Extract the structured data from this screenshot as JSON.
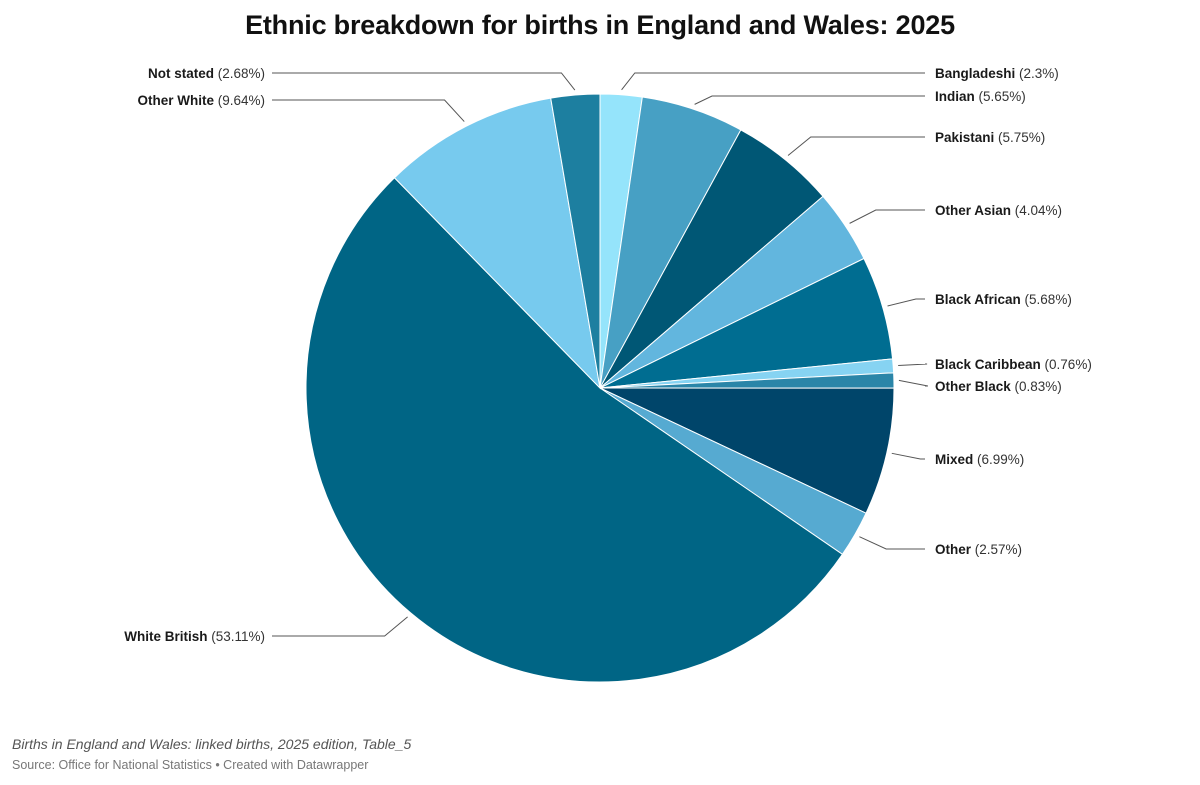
{
  "title": "Ethnic breakdown for births in England and Wales: 2025",
  "footer": {
    "note": "Births in England and Wales: linked births, 2025 edition, Table_5",
    "source": "Source: Office for National Statistics • Created with Datawrapper"
  },
  "chart_data": {
    "type": "pie",
    "title": "Ethnic breakdown for births in England and Wales: 2025",
    "unit": "%",
    "slices": [
      {
        "label": "Bangladeshi",
        "value": 2.3,
        "display": "(2.3%)",
        "color": "#95e4fb"
      },
      {
        "label": "Indian",
        "value": 5.65,
        "display": "(5.65%)",
        "color": "#47a0c4"
      },
      {
        "label": "Pakistani",
        "value": 5.75,
        "display": "(5.75%)",
        "color": "#005775"
      },
      {
        "label": "Other Asian",
        "value": 4.04,
        "display": "(4.04%)",
        "color": "#62b6de"
      },
      {
        "label": "Black African",
        "value": 5.68,
        "display": "(5.68%)",
        "color": "#006d91"
      },
      {
        "label": "Black Caribbean",
        "value": 0.76,
        "display": "(0.76%)",
        "color": "#86d3f2"
      },
      {
        "label": "Other Black",
        "value": 0.83,
        "display": "(0.83%)",
        "color": "#2a85a8"
      },
      {
        "label": "Mixed",
        "value": 6.99,
        "display": "(6.99%)",
        "color": "#00456a"
      },
      {
        "label": "Other",
        "value": 2.57,
        "display": "(2.57%)",
        "color": "#56aad1"
      },
      {
        "label": "White British",
        "value": 53.11,
        "display": "(53.11%)",
        "color": "#006585"
      },
      {
        "label": "Other White",
        "value": 9.64,
        "display": "(9.64%)",
        "color": "#77caee"
      },
      {
        "label": "Not stated",
        "value": 2.68,
        "display": "(2.68%)",
        "color": "#1d7fa0"
      }
    ]
  }
}
